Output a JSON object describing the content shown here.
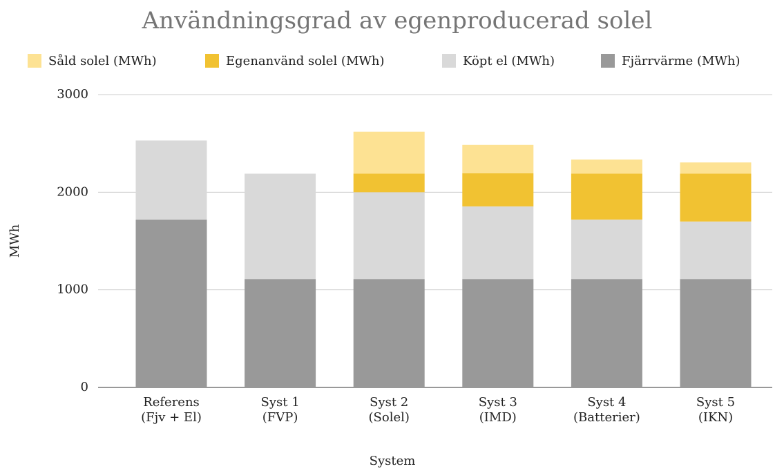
{
  "chart_data": {
    "type": "stacked_bar",
    "title": "Användningsgrad av egenproducerad solel",
    "categories": [
      [
        "Referens",
        "(Fjv + El)"
      ],
      [
        "Syst 1",
        "(FVP)"
      ],
      [
        "Syst 2",
        "(Solel)"
      ],
      [
        "Syst 3",
        "(IMD)"
      ],
      [
        "Syst 4",
        "(Batterier)"
      ],
      [
        "Syst 5",
        "(IKN)"
      ]
    ],
    "series": [
      {
        "name": "Såld solel (MWh)",
        "color": "#fde293",
        "values": [
          0,
          0,
          430,
          290,
          145,
          115
        ]
      },
      {
        "name": "Egenanvänd solel (MWh)",
        "color": "#f1c232",
        "values": [
          0,
          0,
          190,
          340,
          470,
          490
        ]
      },
      {
        "name": "Köpt el (MWh)",
        "color": "#d9d9d9",
        "values": [
          810,
          1080,
          890,
          745,
          610,
          590
        ]
      },
      {
        "name": "Fjärrvärme (MWh)",
        "color": "#999999",
        "values": [
          1720,
          1110,
          1110,
          1110,
          1110,
          1110
        ]
      }
    ],
    "xlabel": "System",
    "ylabel": "MWh",
    "ylim": [
      0,
      3000
    ],
    "yticks": [
      0,
      1000,
      2000,
      3000
    ],
    "grid": true,
    "legend": "top"
  }
}
